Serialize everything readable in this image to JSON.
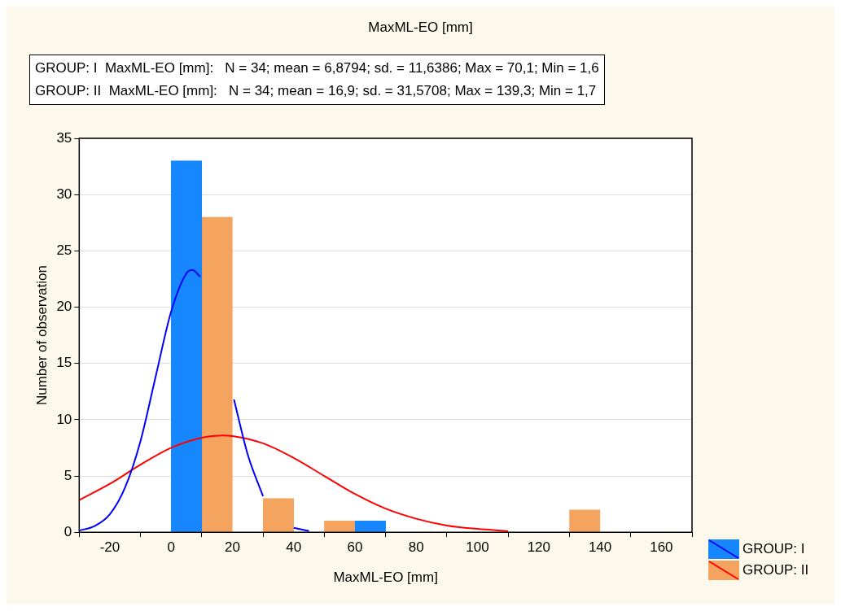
{
  "chart_data": {
    "type": "bar",
    "title": "MaxML-EO [mm]",
    "xlabel": "MaxML-EO [mm]",
    "ylabel": "Number of observation",
    "annotations": [
      "GROUP: I  MaxML-EO [mm]:   N = 34; mean = 6,8794; sd. = 11,6386; Max = 70,1; Min = 1,6",
      "GROUP: II  MaxML-EO [mm]:   N = 34; mean = 16,9; sd. = 31,5708; Max = 139,3; Min = 1,7"
    ],
    "x": [
      -15,
      -5,
      5,
      15,
      25,
      35,
      45,
      55,
      65,
      75,
      85,
      95,
      105,
      115,
      125,
      135
    ],
    "series": [
      {
        "name": "GROUP: I",
        "color": "#1787ff",
        "values": [
          0,
          0,
          33,
          0,
          0,
          0,
          0,
          0,
          1,
          0,
          0,
          0,
          0,
          0,
          0,
          0
        ]
      },
      {
        "name": "GROUP: II",
        "color": "#f5a45f",
        "values": [
          0,
          0,
          0,
          28,
          0,
          3,
          0,
          1,
          0,
          0,
          0,
          0,
          0,
          0,
          0,
          2
        ]
      },
      {
        "type": "line",
        "color": "#0000ff",
        "x": [
          -30,
          -25,
          -20,
          -15,
          -10,
          -5,
          0,
          5,
          6.9,
          9.5,
          15,
          20.5,
          25,
          30,
          35,
          40,
          45
        ],
        "values": [
          0.15,
          0.55,
          1.6,
          4.0,
          8.1,
          13.9,
          19.6,
          23.0,
          23.3,
          22.7,
          null,
          11.8,
          6.9,
          3.2,
          null,
          0.4,
          0.1
        ]
      },
      {
        "type": "line",
        "color": "#ff0000",
        "x": [
          -30,
          -20,
          -10,
          0,
          10,
          16.9,
          20,
          30,
          40,
          50,
          60,
          70,
          80,
          90,
          100,
          110
        ],
        "values": [
          2.85,
          4.3,
          6.0,
          7.5,
          8.4,
          8.6,
          8.55,
          7.9,
          6.6,
          5.0,
          3.4,
          2.1,
          1.2,
          0.6,
          0.3,
          0.1
        ]
      }
    ],
    "xlim": [
      -30,
      170
    ],
    "xticks": [
      -20,
      0,
      20,
      40,
      60,
      80,
      100,
      120,
      140,
      160
    ],
    "ylim": [
      0,
      35
    ],
    "yticks": [
      0,
      5,
      10,
      15,
      20,
      25,
      30,
      35
    ],
    "grid": "y",
    "legend": "bottom right"
  }
}
